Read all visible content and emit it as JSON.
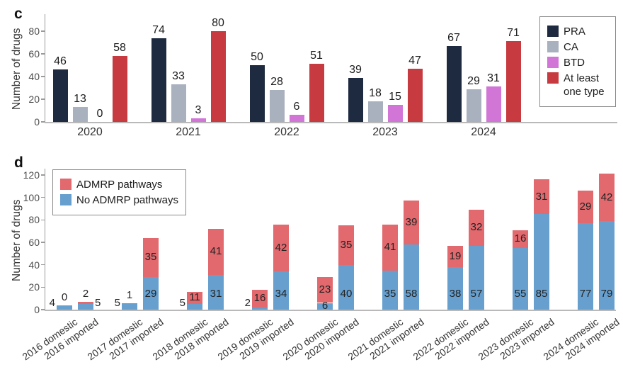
{
  "chart_data": [
    {
      "type": "bar",
      "panel_label": "c",
      "ylabel": "Number of drugs",
      "categories": [
        "2020",
        "2021",
        "2022",
        "2023",
        "2024"
      ],
      "series": [
        {
          "name": "PRA",
          "color": "#1d2a3f",
          "values": [
            46,
            74,
            50,
            39,
            67
          ]
        },
        {
          "name": "CA",
          "color": "#a9b1bf",
          "values": [
            13,
            33,
            28,
            18,
            29
          ]
        },
        {
          "name": "BTD",
          "color": "#d175d6",
          "values": [
            0,
            3,
            6,
            15,
            31
          ]
        },
        {
          "name": "At least one type",
          "color": "#c73b40",
          "values": [
            58,
            80,
            51,
            47,
            71
          ]
        }
      ],
      "yticks": [
        0,
        20,
        40,
        60,
        80
      ],
      "ylim": [
        0,
        95
      ],
      "grid": false,
      "legend_position": "top-right"
    },
    {
      "type": "stacked-bar",
      "panel_label": "d",
      "ylabel": "Number of drugs",
      "categories": [
        "2016 domestic",
        "2016 imported",
        "2017 domestic",
        "2017 imported",
        "2018 domestic",
        "2018 imported",
        "2019 domestic",
        "2019 imported",
        "2020 domestic",
        "2020 imported",
        "2021 domestic",
        "2021 imported",
        "2022 domestic",
        "2022 imported",
        "2023 domestic",
        "2023 imported",
        "2024 domestic",
        "2024 imported"
      ],
      "series": [
        {
          "name": "No ADMRP pathways",
          "color": "#67a0cf",
          "values": [
            4,
            5,
            5,
            29,
            5,
            31,
            2,
            34,
            6,
            40,
            35,
            58,
            38,
            57,
            55,
            85,
            77,
            79
          ],
          "label_placement": [
            "left",
            "right",
            "left",
            "in",
            "left",
            "in",
            "left",
            "in",
            "in",
            "in",
            "in",
            "in",
            "in",
            "in",
            "in",
            "in",
            "in",
            "in"
          ]
        },
        {
          "name": "ADMRP pathways",
          "color": "#e2696e",
          "values": [
            0,
            2,
            1,
            35,
            11,
            41,
            16,
            42,
            23,
            35,
            41,
            39,
            19,
            32,
            16,
            31,
            29,
            42
          ],
          "label_placement": [
            "top",
            "top",
            "top",
            "in",
            "in",
            "in",
            "in",
            "in",
            "in",
            "in",
            "in",
            "in",
            "in",
            "in",
            "in",
            "in",
            "in",
            "in"
          ]
        }
      ],
      "legend_order": [
        "ADMRP pathways",
        "No ADMRP pathways"
      ],
      "yticks": [
        0,
        20,
        40,
        60,
        80,
        100,
        120
      ],
      "ylim": [
        0,
        124
      ],
      "grid": false,
      "legend_position": "top-left"
    }
  ]
}
